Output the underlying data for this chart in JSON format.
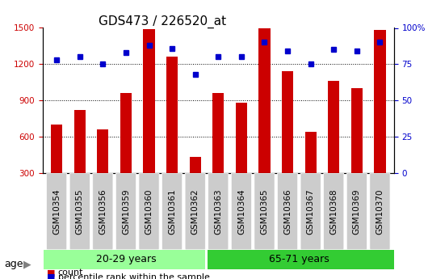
{
  "title": "GDS473 / 226520_at",
  "samples": [
    "GSM10354",
    "GSM10355",
    "GSM10356",
    "GSM10359",
    "GSM10360",
    "GSM10361",
    "GSM10362",
    "GSM10363",
    "GSM10364",
    "GSM10365",
    "GSM10366",
    "GSM10367",
    "GSM10368",
    "GSM10369",
    "GSM10370"
  ],
  "counts": [
    700,
    820,
    660,
    960,
    1490,
    1260,
    430,
    960,
    880,
    1500,
    1140,
    640,
    1060,
    1000,
    1480
  ],
  "percentile": [
    78,
    80,
    75,
    83,
    88,
    86,
    68,
    80,
    80,
    90,
    84,
    75,
    85,
    84,
    90
  ],
  "group1_label": "20-29 years",
  "group2_label": "65-71 years",
  "group1_count": 7,
  "group2_count": 8,
  "bar_color": "#cc0000",
  "dot_color": "#0000cc",
  "bar_bottom": 300,
  "ylim_left": [
    300,
    1500
  ],
  "ylim_right": [
    0,
    100
  ],
  "yticks_left": [
    300,
    600,
    900,
    1200,
    1500
  ],
  "yticks_right": [
    0,
    25,
    50,
    75,
    100
  ],
  "grid_lines": [
    600,
    900,
    1200
  ],
  "legend_count_label": "count",
  "legend_pct_label": "percentile rank within the sample",
  "age_label": "age",
  "group1_bg": "#99ff99",
  "group2_bg": "#33cc33",
  "tick_label_bg": "#cccccc",
  "background_color": "#ffffff",
  "title_fontsize": 11,
  "tick_fontsize": 7.5,
  "legend_fontsize": 8,
  "age_fontsize": 9,
  "group_label_fontsize": 9
}
